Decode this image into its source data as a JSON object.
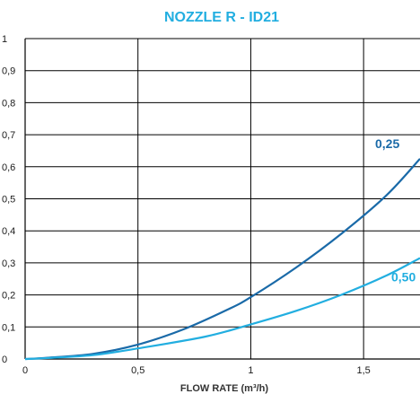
{
  "chart_data": {
    "type": "line",
    "title": "NOZZLE R - ID21",
    "xlabel": "FLOW RATE (m³/h)",
    "ylabel": "",
    "xlim": [
      0,
      1.75
    ],
    "ylim": [
      0,
      1
    ],
    "grid": true,
    "x_ticks": [
      {
        "value": 0,
        "label": "0"
      },
      {
        "value": 0.5,
        "label": "0,5"
      },
      {
        "value": 1,
        "label": "1"
      },
      {
        "value": 1.5,
        "label": "1,5"
      }
    ],
    "y_ticks": [
      {
        "value": 0,
        "label": "0"
      },
      {
        "value": 0.1,
        "label": "0,1"
      },
      {
        "value": 0.2,
        "label": "0,2"
      },
      {
        "value": 0.3,
        "label": "0,3"
      },
      {
        "value": 0.4,
        "label": "0,4"
      },
      {
        "value": 0.5,
        "label": "0,5"
      },
      {
        "value": 0.6,
        "label": "0,6"
      },
      {
        "value": 0.7,
        "label": "0,7"
      },
      {
        "value": 0.8,
        "label": "0,8"
      },
      {
        "value": 0.9,
        "label": "0,9"
      },
      {
        "value": 1,
        "label": "1"
      }
    ],
    "series": [
      {
        "name": "0,25",
        "color": "#1a6aa8",
        "x": [
          0,
          0.1,
          0.3,
          0.5,
          0.7,
          0.9,
          1.0,
          1.2,
          1.4,
          1.6,
          1.75
        ],
        "y": [
          0,
          0.004,
          0.016,
          0.045,
          0.092,
          0.155,
          0.193,
          0.285,
          0.39,
          0.51,
          0.625
        ]
      },
      {
        "name": "0,50",
        "color": "#22aee0",
        "x": [
          0,
          0.1,
          0.3,
          0.5,
          0.8,
          1.0,
          1.2,
          1.4,
          1.6,
          1.75
        ],
        "y": [
          0,
          0.003,
          0.012,
          0.033,
          0.07,
          0.108,
          0.15,
          0.2,
          0.26,
          0.315
        ]
      }
    ],
    "title_color": "#22aee0"
  }
}
